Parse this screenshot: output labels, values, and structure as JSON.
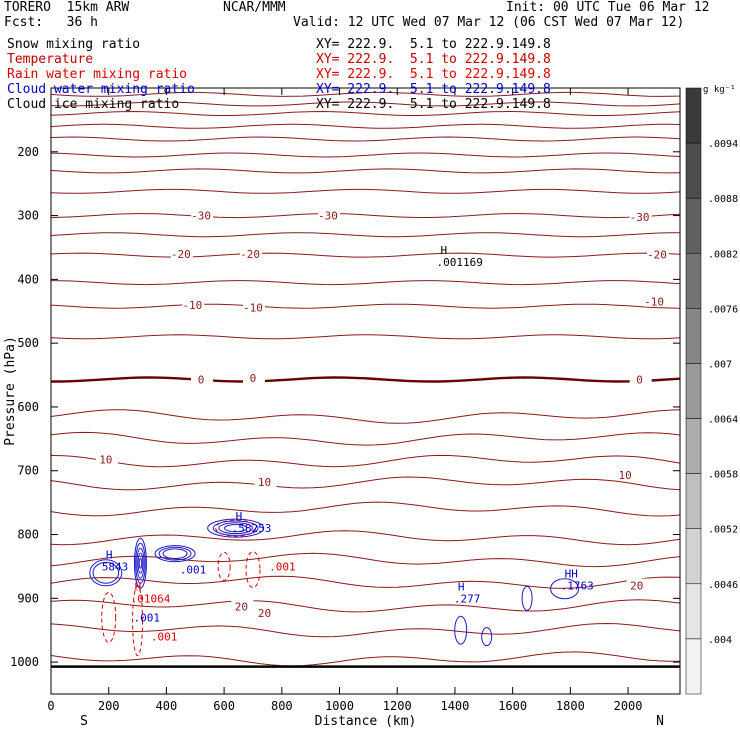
{
  "header": {
    "model": "TORERO  15km ARW",
    "forecast": "Fcst:   36 h",
    "center": "NCAR/MMM",
    "init": "Init: 00 UTC Tue 06 Mar 12",
    "valid": "Valid: 12 UTC Wed 07 Mar 12 (06 CST Wed 07 Mar 12)"
  },
  "legend": [
    {
      "name": "Snow mixing ratio",
      "xy": "XY= 222.9.  5.1 to 222.9.149.8",
      "color": "#000000"
    },
    {
      "name": "Temperature",
      "xy": "XY= 222.9.  5.1 to 222.9.149.8",
      "color": "#c00000"
    },
    {
      "name": "Rain water mixing ratio",
      "xy": "XY= 222.9.  5.1 to 222.9.149.8",
      "color": "#dd0000"
    },
    {
      "name": "Cloud water mixing ratio",
      "xy": "XY= 222.9.  5.1 to 222.9.149.8",
      "color": "#0000cc"
    },
    {
      "name": "Cloud ice mixing ratio",
      "xy": "XY= 222.9.  5.1 to 222.9.149.8",
      "color": "#000000"
    }
  ],
  "chart_data": {
    "type": "contour cross-section",
    "xlabel": "Distance (km)",
    "ylabel": "Pressure (hPa)",
    "x_ticks": [
      0,
      200,
      400,
      600,
      800,
      1000,
      1200,
      1400,
      1600,
      1800,
      2000
    ],
    "xlim": [
      0,
      2180
    ],
    "y_ticks": [
      200,
      300,
      400,
      500,
      600,
      700,
      800,
      900,
      1000
    ],
    "ylim": [
      1050,
      100
    ],
    "x_end_labels": {
      "left": "S",
      "right": "N"
    },
    "colorbar": {
      "unit": "g kg⁻¹",
      "ticks": [
        ".0094",
        ".0088",
        ".0082",
        ".0076",
        ".007",
        ".0064",
        ".0058",
        ".0052",
        ".0046",
        ".004"
      ],
      "grays": [
        "#3a3a3a",
        "#4d4d4d",
        "#606060",
        "#737373",
        "#868686",
        "#999999",
        "#acacac",
        "#bfbfbf",
        "#d2d2d2",
        "#e5e5e5",
        "#f2f2f2"
      ]
    },
    "temperature_labels": [
      {
        "text": "-30",
        "x": 520,
        "p": 300
      },
      {
        "text": "-30",
        "x": 960,
        "p": 300
      },
      {
        "text": "-30",
        "x": 2040,
        "p": 302
      },
      {
        "text": "-20",
        "x": 450,
        "p": 360
      },
      {
        "text": "-20",
        "x": 690,
        "p": 360
      },
      {
        "text": "-20",
        "x": 2100,
        "p": 361
      },
      {
        "text": "-10",
        "x": 490,
        "p": 440
      },
      {
        "text": "-10",
        "x": 700,
        "p": 444
      },
      {
        "text": "-10",
        "x": 2090,
        "p": 435
      },
      {
        "text": "0",
        "x": 520,
        "p": 557
      },
      {
        "text": "0",
        "x": 700,
        "p": 555
      },
      {
        "text": "0",
        "x": 2040,
        "p": 557
      },
      {
        "text": "10",
        "x": 190,
        "p": 682
      },
      {
        "text": "10",
        "x": 740,
        "p": 718
      },
      {
        "text": "10",
        "x": 1990,
        "p": 707
      },
      {
        "text": "20",
        "x": 660,
        "p": 913
      },
      {
        "text": "20",
        "x": 740,
        "p": 923
      },
      {
        "text": "20",
        "x": 2030,
        "p": 880
      }
    ],
    "temperature_levels": [
      {
        "p": 110,
        "v": null
      },
      {
        "p": 125,
        "v": null
      },
      {
        "p": 140,
        "v": null
      },
      {
        "p": 160,
        "v": null
      },
      {
        "p": 180,
        "v": null
      },
      {
        "p": 205,
        "v": null
      },
      {
        "p": 230,
        "v": null
      },
      {
        "p": 262,
        "v": null
      },
      {
        "p": 300,
        "v": -30
      },
      {
        "p": 330,
        "v": null
      },
      {
        "p": 362,
        "v": -20
      },
      {
        "p": 405,
        "v": null
      },
      {
        "p": 442,
        "v": -10
      },
      {
        "p": 490,
        "v": null
      },
      {
        "p": 557,
        "v": 0
      },
      {
        "p": 615,
        "v": null
      },
      {
        "p": 650,
        "v": null
      },
      {
        "p": 685,
        "v": 10
      },
      {
        "p": 720,
        "v": null
      },
      {
        "p": 760,
        "v": null
      },
      {
        "p": 805,
        "v": null
      },
      {
        "p": 840,
        "v": null
      },
      {
        "p": 875,
        "v": null
      },
      {
        "p": 912,
        "v": 20
      },
      {
        "p": 950,
        "v": null
      },
      {
        "p": 995,
        "v": null
      }
    ],
    "max_labels": [
      {
        "mark": "H",
        "value": ".001169",
        "x": 1350,
        "p": 373,
        "color": "#000000"
      },
      {
        "mark": "H",
        "value": ".58253",
        "x": 640,
        "p": 790,
        "color": "#0000cc"
      },
      {
        "mark": "H",
        "value": "5843",
        "x": 190,
        "p": 850,
        "color": "#0000cc"
      },
      {
        "mark": "H",
        "value": ".01064",
        "x": 290,
        "p": 900,
        "color": "#dd0000"
      },
      {
        "mark": "",
        "value": ".001",
        "x": 300,
        "p": 930,
        "color": "#0000cc"
      },
      {
        "mark": "",
        "value": ".001",
        "x": 360,
        "p": 960,
        "color": "#dd0000"
      },
      {
        "mark": "",
        "value": ".001",
        "x": 460,
        "p": 855,
        "color": "#0000cc"
      },
      {
        "mark": "",
        "value": ".001",
        "x": 770,
        "p": 850,
        "color": "#dd0000"
      },
      {
        "mark": "H",
        "value": ".277",
        "x": 1410,
        "p": 900,
        "color": "#0000cc"
      },
      {
        "mark": "HH",
        "value": ".1763",
        "x": 1780,
        "p": 880,
        "color": "#0000cc"
      }
    ]
  }
}
